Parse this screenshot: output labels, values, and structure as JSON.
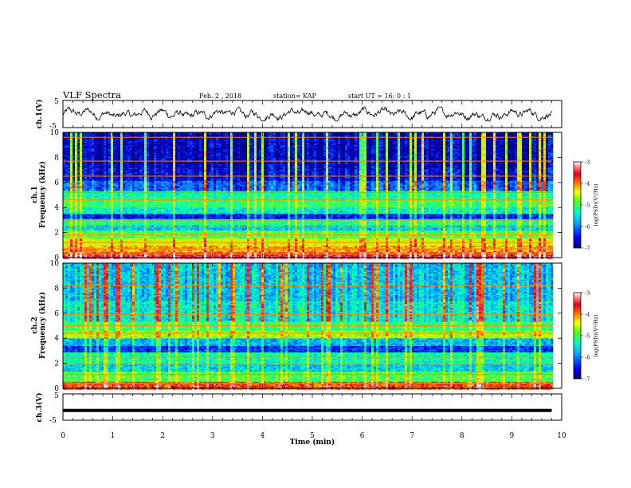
{
  "header": {
    "title": "VLF Spectra",
    "date": "Feb. 2 , 2018",
    "station": "station= KAP",
    "start": "start UT = 16: 0 : 1"
  },
  "colors": {
    "spectrogram_scale": [
      "#00007a",
      "#0000d0",
      "#0050ff",
      "#00b0ff",
      "#00ffc0",
      "#40ff40",
      "#c0ff00",
      "#ffe000",
      "#ff6000",
      "#e00020",
      "#ff8080",
      "#ffffff"
    ],
    "trace": "#000000"
  },
  "chart_data": [
    {
      "type": "line",
      "panel": "ch.1 waveform",
      "ylabel": "ch.1(V)",
      "ylim": [
        -5,
        5
      ],
      "yticks": [
        "5",
        "-5"
      ],
      "xlim": [
        0,
        10
      ],
      "trend": "noisy oscillating waveform, amplitude approx -2 to +2 V, over 0 to 9.8 min"
    },
    {
      "type": "heatmap",
      "panel": "ch.1 spectrogram",
      "ylabel": [
        "ch.1",
        "Frequency (kHz)"
      ],
      "ylim": [
        0,
        10
      ],
      "yticks": [
        "0",
        "2",
        "4",
        "6",
        "8",
        "10"
      ],
      "xlim": [
        0,
        10
      ],
      "data_extent_min": 9.8,
      "colorbar": {
        "label": "log(PSD)(V²/Hz)",
        "range": [
          -7,
          -3
        ],
        "ticks": [
          "-3",
          "-4",
          "-5",
          "-6",
          "-7"
        ]
      },
      "bands": [
        {
          "f_low": 0.0,
          "f_high": 0.5,
          "level": -3.6
        },
        {
          "f_low": 0.5,
          "f_high": 1.0,
          "level": -4.3
        },
        {
          "f_low": 1.0,
          "f_high": 1.6,
          "level": -4.7
        },
        {
          "f_low": 1.6,
          "f_high": 2.2,
          "level": -5.2
        },
        {
          "f_low": 2.2,
          "f_high": 2.6,
          "level": -5.8
        },
        {
          "f_low": 2.6,
          "f_high": 3.1,
          "level": -5.4
        },
        {
          "f_low": 3.1,
          "f_high": 3.5,
          "level": -6.5
        },
        {
          "f_low": 3.5,
          "f_high": 4.0,
          "level": -5.6
        },
        {
          "f_low": 4.0,
          "f_high": 4.8,
          "level": -5.3
        },
        {
          "f_low": 4.8,
          "f_high": 5.4,
          "level": -5.5
        },
        {
          "f_low": 5.4,
          "f_high": 6.2,
          "level": -6.2
        },
        {
          "f_low": 6.2,
          "f_high": 7.2,
          "level": -6.6
        },
        {
          "f_low": 7.2,
          "f_high": 10.0,
          "level": -6.7
        }
      ],
      "lines_kHz": [
        0.3,
        0.7,
        1.2,
        1.8,
        2.4,
        3.0,
        4.6,
        5.2,
        6.5,
        7.7,
        9.6
      ]
    },
    {
      "type": "heatmap",
      "panel": "ch.2 spectrogram",
      "ylabel": [
        "ch.2",
        "Frequency (kHz)"
      ],
      "ylim": [
        0,
        10
      ],
      "yticks": [
        "0",
        "2",
        "4",
        "6",
        "8",
        "10"
      ],
      "xlim": [
        0,
        10
      ],
      "data_extent_min": 9.8,
      "colorbar": {
        "label": "log(PSD)(V²/Hz)",
        "range": [
          -7,
          -3
        ],
        "ticks": [
          "-3",
          "-4",
          "-5",
          "-6",
          "-7"
        ]
      },
      "bands": [
        {
          "f_low": 0.0,
          "f_high": 0.6,
          "level": -4.0
        },
        {
          "f_low": 0.6,
          "f_high": 1.4,
          "level": -5.2
        },
        {
          "f_low": 1.4,
          "f_high": 2.0,
          "level": -5.8
        },
        {
          "f_low": 2.0,
          "f_high": 2.9,
          "level": -5.5
        },
        {
          "f_low": 2.9,
          "f_high": 3.4,
          "level": -6.4
        },
        {
          "f_low": 3.4,
          "f_high": 4.0,
          "level": -5.9
        },
        {
          "f_low": 4.0,
          "f_high": 4.6,
          "level": -4.9
        },
        {
          "f_low": 4.6,
          "f_high": 5.4,
          "level": -5.3
        },
        {
          "f_low": 5.4,
          "f_high": 7.0,
          "level": -5.6
        },
        {
          "f_low": 7.0,
          "f_high": 10.0,
          "level": -5.8
        }
      ],
      "lines_kHz": [
        0.4,
        1.1,
        1.9,
        2.5,
        4.4,
        5.0,
        5.9,
        8.2
      ]
    },
    {
      "type": "line",
      "panel": "ch.3 waveform",
      "ylabel": "ch.3(V)",
      "ylim": [
        -5,
        5
      ],
      "yticks": [
        "5",
        "-5"
      ],
      "xlim": [
        0,
        10
      ],
      "constant_value": -1.3
    }
  ],
  "x_axis": {
    "label": "Time (min)",
    "ticks": [
      "0",
      "1",
      "2",
      "3",
      "4",
      "5",
      "6",
      "7",
      "8",
      "9",
      "10"
    ]
  }
}
